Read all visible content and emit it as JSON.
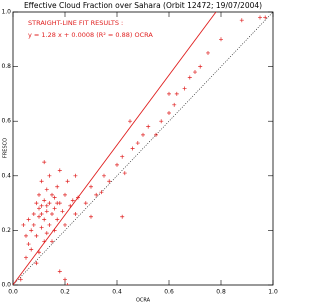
{
  "chart_data": {
    "type": "scatter",
    "title": "Effective Cloud Fraction over Sahara (Orbit 12472; 19/07/2004)",
    "annotations": [
      "STRAIGHT-LINE FIT RESULTS :",
      "y =   1.28 x + 0.0008 (R² = 0.88)   OCRA"
    ],
    "xlabel": "OCRA",
    "ylabel": "FRESCO",
    "x": [
      0.03,
      0.05,
      0.06,
      0.07,
      0.08,
      0.08,
      0.09,
      0.09,
      0.1,
      0.1,
      0.1,
      0.11,
      0.11,
      0.11,
      0.12,
      0.12,
      0.12,
      0.13,
      0.13,
      0.13,
      0.14,
      0.14,
      0.14,
      0.15,
      0.15,
      0.16,
      0.16,
      0.17,
      0.17,
      0.18,
      0.18,
      0.19,
      0.2,
      0.2,
      0.21,
      0.22,
      0.23,
      0.24,
      0.25,
      0.05,
      0.06,
      0.07,
      0.04,
      0.09,
      0.1,
      0.12,
      0.15,
      0.18,
      0.2,
      0.21,
      0.11,
      0.13,
      0.16,
      0.17,
      0.28,
      0.3,
      0.32,
      0.34,
      0.35,
      0.37,
      0.4,
      0.42,
      0.43,
      0.46,
      0.48,
      0.5,
      0.52,
      0.55,
      0.57,
      0.6,
      0.62,
      0.63,
      0.66,
      0.68,
      0.7,
      0.72,
      0.75,
      0.8,
      0.88,
      0.95,
      0.97,
      0.42,
      0.3,
      0.24,
      0.45,
      0.6
    ],
    "y": [
      0.02,
      0.1,
      0.15,
      0.2,
      0.22,
      0.26,
      0.18,
      0.3,
      0.25,
      0.28,
      0.33,
      0.21,
      0.29,
      0.38,
      0.24,
      0.31,
      0.45,
      0.27,
      0.35,
      0.19,
      0.22,
      0.3,
      0.4,
      0.26,
      0.33,
      0.2,
      0.28,
      0.36,
      0.24,
      0.3,
      0.42,
      0.27,
      0.33,
      0.22,
      0.38,
      0.29,
      0.31,
      0.26,
      0.32,
      0.18,
      0.24,
      0.13,
      0.22,
      0.08,
      0.12,
      0.16,
      0.16,
      0.05,
      0.02,
      0.0,
      0.26,
      0.29,
      0.32,
      0.3,
      0.3,
      0.36,
      0.33,
      0.34,
      0.4,
      0.38,
      0.44,
      0.47,
      0.41,
      0.5,
      0.52,
      0.55,
      0.58,
      0.55,
      0.6,
      0.63,
      0.66,
      0.7,
      0.72,
      0.76,
      0.78,
      0.8,
      0.85,
      0.9,
      0.97,
      0.98,
      0.98,
      0.25,
      0.25,
      0.4,
      0.6,
      0.7
    ],
    "color": "#e02020",
    "fit": {
      "slope": 1.28,
      "intercept": 0.0008,
      "color": "#e02020"
    },
    "identity_line": true,
    "xlim": [
      0,
      1
    ],
    "ylim": [
      0,
      1
    ],
    "xticks": [
      {
        "value": 0,
        "label": "0.0"
      },
      {
        "value": 0.2,
        "label": "0.2"
      },
      {
        "value": 0.4,
        "label": "0.4"
      },
      {
        "value": 0.6,
        "label": "0.6"
      },
      {
        "value": 0.8,
        "label": "0.8"
      },
      {
        "value": 1,
        "label": "1.0"
      }
    ],
    "yticks": [
      {
        "value": 0,
        "label": "0.0"
      },
      {
        "value": 0.2,
        "label": "0.2"
      },
      {
        "value": 0.4,
        "label": "0.4"
      },
      {
        "value": 0.6,
        "label": "0.6"
      },
      {
        "value": 0.8,
        "label": "0.8"
      },
      {
        "value": 1,
        "label": "1.0"
      }
    ]
  }
}
